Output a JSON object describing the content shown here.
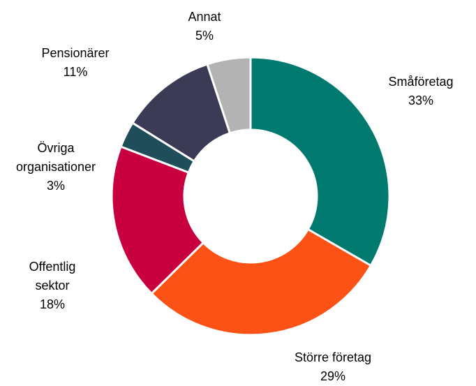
{
  "chart_data": {
    "type": "donut",
    "categories": [
      "Småföretag",
      "Större företag",
      "Offentlig sektor",
      "Övriga organisationer",
      "Pensionärer",
      "Annat"
    ],
    "values": [
      33,
      29,
      18,
      3,
      11,
      5
    ],
    "value_labels": [
      "33%",
      "29%",
      "18%",
      "3%",
      "11%",
      "5%"
    ],
    "colors": [
      "#007a6e",
      "#fc5216",
      "#c8003f",
      "#1f4e5a",
      "#3b3b55",
      "#b3b3b3"
    ]
  }
}
